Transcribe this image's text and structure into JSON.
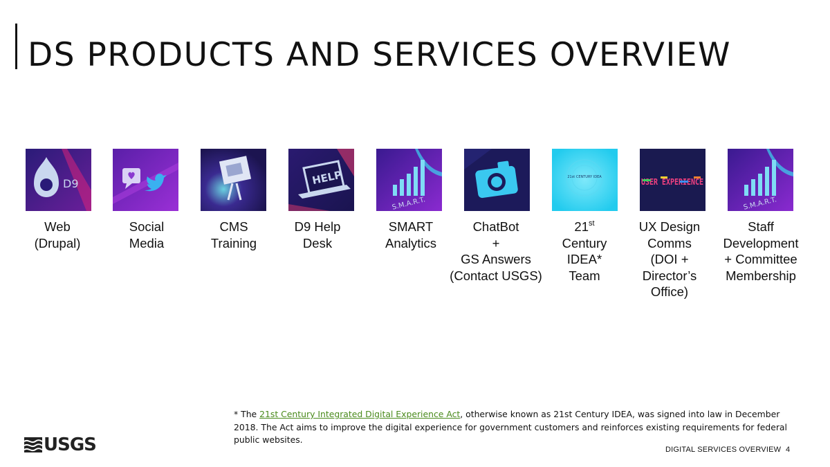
{
  "slide": {
    "title": "DS PRODUCTS AND SERVICES OVERVIEW",
    "footer_label": "DIGITAL SERVICES OVERVIEW",
    "page_number": "4",
    "logo_text": "USGS"
  },
  "products": [
    {
      "icon": "drupal-d9-icon",
      "lines": [
        "Web",
        "(Drupal)"
      ]
    },
    {
      "icon": "social-media-icon",
      "lines": [
        "Social",
        "Media"
      ]
    },
    {
      "icon": "presentation-board-icon",
      "lines": [
        "CMS",
        "Training"
      ]
    },
    {
      "icon": "help-laptop-icon",
      "lines": [
        "D9 Help",
        "Desk"
      ]
    },
    {
      "icon": "smart-bar-chart-icon",
      "lines": [
        "SMART",
        "Analytics"
      ]
    },
    {
      "icon": "camera-icon",
      "lines": [
        "ChatBot",
        "+",
        "GS Answers",
        "(Contact USGS)"
      ]
    },
    {
      "icon": "idea-seal-icon",
      "tile_text": "21st CENTURY IDEA",
      "sup": "st",
      "lines": [
        "21",
        "Century",
        "IDEA*",
        "Team"
      ]
    },
    {
      "icon": "ux-experience-icon",
      "tile_text": "USER EXPERIENCE",
      "lines": [
        "UX Design",
        "Comms",
        "(DOI +",
        "Director’s",
        "Office)"
      ]
    },
    {
      "icon": "smart-bar-chart-icon",
      "lines": [
        "Staff",
        "Development",
        "+ Committee",
        "Membership"
      ]
    }
  ],
  "footnote": {
    "prefix": "* The ",
    "link_text": "21st Century Integrated Digital Experience Act",
    "suffix": ", otherwise known as 21st Century IDEA, was signed into law in December 2018. The Act aims to improve the digital experience for government customers and reinforces existing requirements for federal public websites."
  },
  "colors": {
    "link": "#4a8a1c",
    "tile_dark": "#1a1660",
    "tile_purple": "#7b2bc4",
    "tile_cyan": "#31d6f2"
  }
}
